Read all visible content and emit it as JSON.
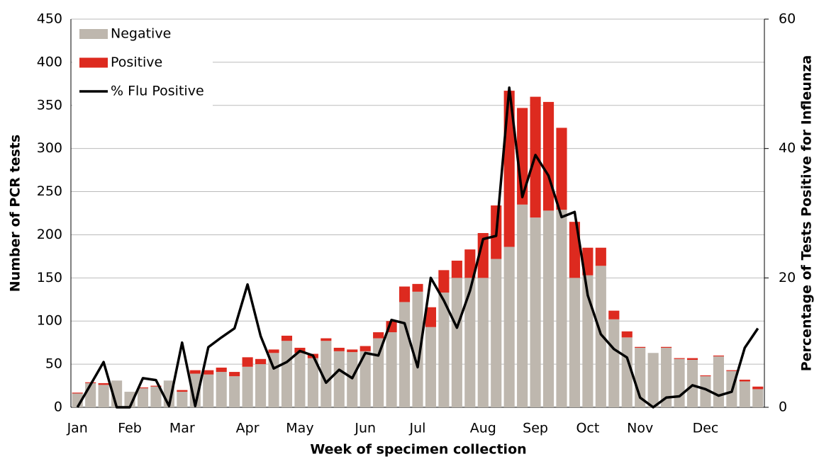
{
  "chart_data": {
    "type": "bar",
    "xlabel": "Week of specimen collection",
    "ylabel": "Number of PCR tests",
    "y2label": "Percentage of Tests Positive for Infleunza",
    "categories": [
      "Jan",
      null,
      null,
      null,
      "Feb",
      null,
      null,
      null,
      "Mar",
      null,
      null,
      null,
      null,
      "Apr",
      null,
      null,
      null,
      "May",
      null,
      null,
      null,
      null,
      "Jun",
      null,
      null,
      null,
      "Jul",
      null,
      null,
      null,
      null,
      "Aug",
      null,
      null,
      null,
      "Sep",
      null,
      null,
      null,
      "Oct",
      null,
      null,
      null,
      "Nov",
      null,
      null,
      null,
      null,
      "Dec",
      null,
      null,
      null,
      null
    ],
    "series": [
      {
        "name": "Negative",
        "color": "#beb7ae",
        "stack": true,
        "values": [
          16,
          28,
          26,
          31,
          18,
          22,
          24,
          31,
          18,
          39,
          38,
          41,
          36,
          47,
          50,
          63,
          77,
          63,
          57,
          77,
          65,
          64,
          65,
          80,
          87,
          122,
          134,
          93,
          133,
          150,
          150,
          150,
          172,
          186,
          235,
          220,
          228,
          229,
          150,
          153,
          164,
          102,
          81,
          69,
          63,
          69,
          56,
          55,
          36,
          59,
          42,
          30,
          21
        ]
      },
      {
        "name": "Positive",
        "color": "#dd2a1f",
        "stack": true,
        "values": [
          1,
          1,
          2,
          0,
          0,
          1,
          1,
          0,
          2,
          4,
          5,
          5,
          5,
          11,
          6,
          4,
          6,
          6,
          5,
          3,
          4,
          3,
          6,
          7,
          13,
          18,
          9,
          23,
          26,
          20,
          33,
          52,
          62,
          181,
          112,
          140,
          126,
          95,
          65,
          32,
          21,
          10,
          7,
          1,
          0,
          1,
          1,
          2,
          1,
          1,
          1,
          2,
          3
        ]
      },
      {
        "name": "% Flu Positive",
        "color": "#000000",
        "type": "line",
        "axis": "y2",
        "values": [
          0,
          3.5,
          7,
          0,
          0,
          4.5,
          4.2,
          0.2,
          10,
          0.2,
          9.3,
          10.8,
          12.2,
          19,
          11,
          6,
          7,
          8.7,
          8,
          3.8,
          5.8,
          4.5,
          8.4,
          8,
          13.5,
          13,
          6.2,
          20,
          16.5,
          12.3,
          18,
          26,
          26.5,
          49.4,
          32.5,
          39,
          35.8,
          29.4,
          30.2,
          17.3,
          11.3,
          9,
          7.7,
          1.5,
          0,
          1.5,
          1.7,
          3.4,
          2.8,
          1.8,
          2.4,
          9.2,
          12.2
        ]
      }
    ],
    "ylim": [
      0,
      450
    ],
    "yticks": [
      0,
      50,
      100,
      150,
      200,
      250,
      300,
      350,
      400,
      450
    ],
    "y2lim": [
      0,
      60
    ],
    "y2ticks": [
      0,
      20,
      40,
      60
    ],
    "grid": true,
    "legend": "upper left"
  }
}
